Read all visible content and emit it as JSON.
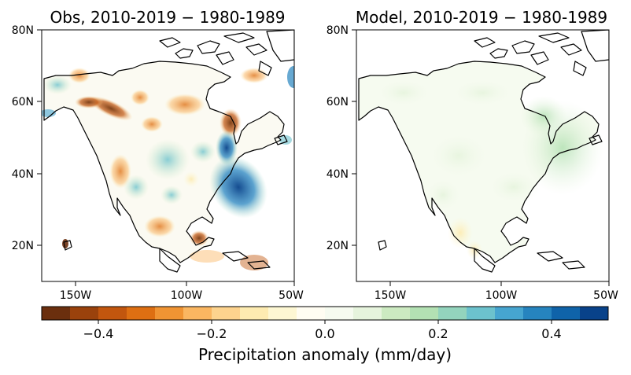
{
  "panels": [
    {
      "title": "Obs, 2010-2019 − 1980-1989",
      "lat_labels": [
        "80N",
        "60N",
        "40N",
        "20N"
      ],
      "lon_labels": [
        "150W",
        "100W",
        "50W"
      ]
    },
    {
      "title": "Model, 2010-2019 − 1980-1989",
      "lat_labels": [
        "80N",
        "60N",
        "40N",
        "20N"
      ],
      "lon_labels": [
        "150W",
        "100W",
        "50W"
      ]
    }
  ],
  "map_extent": {
    "lon": [
      -170,
      -50
    ],
    "lat": [
      10,
      80
    ]
  },
  "colorbar": {
    "label": "Precipitation anomaly (mm/day)",
    "tick_labels": [
      "−0.4",
      "−0.2",
      "0.0",
      "0.2",
      "0.4"
    ],
    "tick_values": [
      -0.4,
      -0.2,
      0.0,
      0.2,
      0.4
    ],
    "range": [
      -0.5,
      0.5
    ],
    "colors": [
      "#6b2f0e",
      "#9a420c",
      "#c2560e",
      "#de6f12",
      "#f09433",
      "#fab661",
      "#fdd38e",
      "#fdebb1",
      "#fdf7d3",
      "#fffdf2",
      "#f6fbf0",
      "#e6f4dd",
      "#cceac1",
      "#b3e1b3",
      "#93d4bd",
      "#6cc2cd",
      "#46a5d0",
      "#2684bf",
      "#0f63a9",
      "#08428a"
    ]
  }
}
